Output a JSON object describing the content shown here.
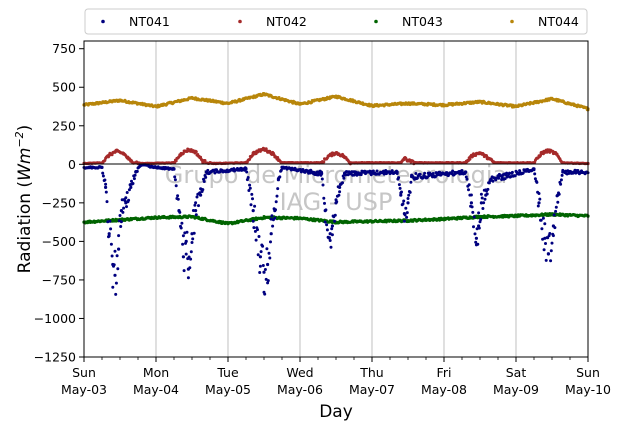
{
  "chart_data": {
    "type": "scatter",
    "xlabel": "Day",
    "ylabel": "Radiation",
    "ylabel_unit_base": "Wm",
    "ylabel_unit_exp": "−2",
    "ylim": [
      -1250,
      800
    ],
    "yticks": [
      750,
      500,
      250,
      0,
      -250,
      -500,
      -750,
      -1000,
      -1250
    ],
    "ytick_labels": [
      "750",
      "500",
      "250",
      "0",
      "−250",
      "−500",
      "−750",
      "−1000",
      "−1250"
    ],
    "xlim_days": [
      0,
      7
    ],
    "xticks": [
      {
        "day": "Sun",
        "date": "May-03"
      },
      {
        "day": "Mon",
        "date": "May-04"
      },
      {
        "day": "Tue",
        "date": "May-05"
      },
      {
        "day": "Wed",
        "date": "May-06"
      },
      {
        "day": "Thu",
        "date": "May-07"
      },
      {
        "day": "Fri",
        "date": "May-08"
      },
      {
        "day": "Sat",
        "date": "May-09"
      },
      {
        "day": "Sun",
        "date": "May-10"
      }
    ],
    "grid": "vertical-major",
    "legend_position": "top-above",
    "watermark": [
      "Grupo de Micrometeorologia",
      "IAG - USP"
    ],
    "series": [
      {
        "name": "NT041",
        "color": "#00007f",
        "points_day_value": [
          [
            0.25,
            -20
          ],
          [
            0.3,
            -150
          ],
          [
            0.35,
            -450
          ],
          [
            0.4,
            -650
          ],
          [
            0.43,
            -720
          ],
          [
            0.48,
            -550
          ],
          [
            0.52,
            -300
          ],
          [
            0.58,
            -250
          ],
          [
            0.65,
            -150
          ],
          [
            0.72,
            -50
          ],
          [
            0.78,
            -10
          ],
          [
            1.25,
            -30
          ],
          [
            1.32,
            -300
          ],
          [
            1.38,
            -600
          ],
          [
            1.42,
            -500
          ],
          [
            1.45,
            -680
          ],
          [
            1.5,
            -450
          ],
          [
            1.55,
            -300
          ],
          [
            1.62,
            -200
          ],
          [
            1.7,
            -50
          ],
          [
            2.25,
            -30
          ],
          [
            2.35,
            -300
          ],
          [
            2.45,
            -600
          ],
          [
            2.5,
            -700
          ],
          [
            2.55,
            -650
          ],
          [
            2.6,
            -450
          ],
          [
            2.65,
            -300
          ],
          [
            2.7,
            -100
          ],
          [
            2.75,
            -20
          ],
          [
            3.3,
            -60
          ],
          [
            3.35,
            -300
          ],
          [
            3.42,
            -450
          ],
          [
            3.45,
            -400
          ],
          [
            3.5,
            -250
          ],
          [
            3.55,
            -150
          ],
          [
            3.62,
            -60
          ],
          [
            4.35,
            -50
          ],
          [
            4.4,
            -200
          ],
          [
            4.45,
            -320
          ],
          [
            4.5,
            -250
          ],
          [
            4.55,
            -80
          ],
          [
            5.3,
            -50
          ],
          [
            5.38,
            -250
          ],
          [
            5.45,
            -480
          ],
          [
            5.48,
            -400
          ],
          [
            5.52,
            -250
          ],
          [
            5.58,
            -200
          ],
          [
            5.65,
            -100
          ],
          [
            6.25,
            -30
          ],
          [
            6.32,
            -250
          ],
          [
            6.4,
            -480
          ],
          [
            6.45,
            -580
          ],
          [
            6.52,
            -400
          ],
          [
            6.58,
            -200
          ],
          [
            6.65,
            -50
          ]
        ]
      },
      {
        "name": "NT042",
        "color": "#a52a2a",
        "points_day_value": [
          [
            0.0,
            5
          ],
          [
            0.25,
            10
          ],
          [
            0.35,
            60
          ],
          [
            0.45,
            85
          ],
          [
            0.55,
            70
          ],
          [
            0.65,
            20
          ],
          [
            0.8,
            5
          ],
          [
            1.25,
            10
          ],
          [
            1.35,
            70
          ],
          [
            1.45,
            95
          ],
          [
            1.55,
            80
          ],
          [
            1.65,
            20
          ],
          [
            1.8,
            5
          ],
          [
            2.25,
            10
          ],
          [
            2.35,
            70
          ],
          [
            2.5,
            100
          ],
          [
            2.62,
            70
          ],
          [
            2.75,
            10
          ],
          [
            3.3,
            10
          ],
          [
            3.4,
            55
          ],
          [
            3.5,
            75
          ],
          [
            3.6,
            55
          ],
          [
            3.7,
            10
          ],
          [
            4.4,
            10
          ],
          [
            4.45,
            40
          ],
          [
            4.5,
            25
          ],
          [
            4.6,
            10
          ],
          [
            5.3,
            10
          ],
          [
            5.4,
            60
          ],
          [
            5.5,
            75
          ],
          [
            5.6,
            45
          ],
          [
            5.7,
            10
          ],
          [
            6.25,
            10
          ],
          [
            6.35,
            70
          ],
          [
            6.45,
            90
          ],
          [
            6.55,
            70
          ],
          [
            6.65,
            10
          ],
          [
            7.0,
            5
          ]
        ]
      },
      {
        "name": "NT043",
        "color": "#006400",
        "points_day_value": [
          [
            0.0,
            -375
          ],
          [
            0.5,
            -360
          ],
          [
            1.0,
            -345
          ],
          [
            1.5,
            -340
          ],
          [
            2.0,
            -385
          ],
          [
            2.5,
            -345
          ],
          [
            3.0,
            -350
          ],
          [
            3.5,
            -375
          ],
          [
            4.0,
            -370
          ],
          [
            4.5,
            -365
          ],
          [
            5.0,
            -355
          ],
          [
            5.5,
            -340
          ],
          [
            6.0,
            -335
          ],
          [
            6.5,
            -325
          ],
          [
            7.0,
            -335
          ]
        ]
      },
      {
        "name": "NT044",
        "color": "#b8860b",
        "points_day_value": [
          [
            0.0,
            385
          ],
          [
            0.5,
            415
          ],
          [
            1.0,
            375
          ],
          [
            1.5,
            430
          ],
          [
            2.0,
            395
          ],
          [
            2.5,
            455
          ],
          [
            3.0,
            390
          ],
          [
            3.5,
            440
          ],
          [
            4.0,
            380
          ],
          [
            4.5,
            395
          ],
          [
            5.0,
            385
          ],
          [
            5.5,
            405
          ],
          [
            6.0,
            375
          ],
          [
            6.5,
            425
          ],
          [
            7.0,
            360
          ]
        ]
      }
    ]
  }
}
